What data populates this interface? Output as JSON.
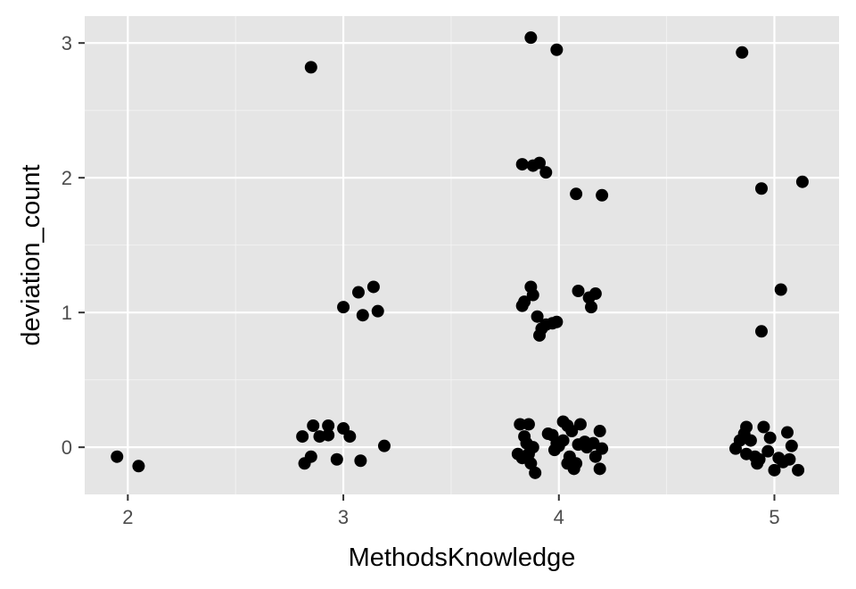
{
  "chart_data": {
    "type": "scatter",
    "xlabel": "MethodsKnowledge",
    "ylabel": "deviation_count",
    "xlim": [
      1.8,
      5.3
    ],
    "ylim": [
      -0.35,
      3.2
    ],
    "x_ticks": [
      2,
      3,
      4,
      5
    ],
    "y_ticks": [
      0,
      1,
      2,
      3
    ],
    "grid": true,
    "legend": "none",
    "colors": {
      "panel": "#e5e5e5",
      "grid_major": "#ffffff",
      "grid_minor": "#f2f2f2",
      "point": "#000000"
    },
    "points": [
      {
        "x": 1.95,
        "y": -0.07
      },
      {
        "x": 2.05,
        "y": -0.14
      },
      {
        "x": 2.85,
        "y": 2.82
      },
      {
        "x": 3.0,
        "y": 1.04
      },
      {
        "x": 3.07,
        "y": 1.15
      },
      {
        "x": 3.09,
        "y": 0.98
      },
      {
        "x": 3.14,
        "y": 1.19
      },
      {
        "x": 3.16,
        "y": 1.01
      },
      {
        "x": 2.81,
        "y": 0.08
      },
      {
        "x": 2.82,
        "y": -0.12
      },
      {
        "x": 2.85,
        "y": -0.07
      },
      {
        "x": 2.86,
        "y": 0.16
      },
      {
        "x": 2.89,
        "y": 0.08
      },
      {
        "x": 2.93,
        "y": 0.09
      },
      {
        "x": 2.93,
        "y": 0.16
      },
      {
        "x": 2.97,
        "y": -0.09
      },
      {
        "x": 3.0,
        "y": 0.14
      },
      {
        "x": 3.03,
        "y": 0.08
      },
      {
        "x": 3.08,
        "y": -0.1
      },
      {
        "x": 3.19,
        "y": 0.01
      },
      {
        "x": 3.87,
        "y": 3.04
      },
      {
        "x": 3.99,
        "y": 2.95
      },
      {
        "x": 3.83,
        "y": 2.1
      },
      {
        "x": 3.88,
        "y": 2.09
      },
      {
        "x": 3.91,
        "y": 2.11
      },
      {
        "x": 3.94,
        "y": 2.04
      },
      {
        "x": 4.08,
        "y": 1.88
      },
      {
        "x": 4.2,
        "y": 1.87
      },
      {
        "x": 3.83,
        "y": 1.05
      },
      {
        "x": 3.84,
        "y": 1.08
      },
      {
        "x": 3.87,
        "y": 1.19
      },
      {
        "x": 3.88,
        "y": 1.13
      },
      {
        "x": 3.9,
        "y": 0.97
      },
      {
        "x": 3.92,
        "y": 0.88
      },
      {
        "x": 3.94,
        "y": 0.91
      },
      {
        "x": 3.99,
        "y": 0.93
      },
      {
        "x": 3.97,
        "y": 0.92
      },
      {
        "x": 3.91,
        "y": 0.83
      },
      {
        "x": 4.09,
        "y": 1.16
      },
      {
        "x": 4.14,
        "y": 1.11
      },
      {
        "x": 4.15,
        "y": 1.04
      },
      {
        "x": 4.17,
        "y": 1.14
      },
      {
        "x": 3.81,
        "y": -0.05
      },
      {
        "x": 3.82,
        "y": 0.17
      },
      {
        "x": 3.83,
        "y": -0.08
      },
      {
        "x": 3.84,
        "y": 0.08
      },
      {
        "x": 3.85,
        "y": 0.03
      },
      {
        "x": 3.86,
        "y": 0.17
      },
      {
        "x": 3.86,
        "y": -0.05
      },
      {
        "x": 3.87,
        "y": -0.12
      },
      {
        "x": 3.89,
        "y": -0.19
      },
      {
        "x": 3.88,
        "y": 0.0
      },
      {
        "x": 3.95,
        "y": 0.1
      },
      {
        "x": 3.97,
        "y": 0.09
      },
      {
        "x": 3.98,
        "y": -0.02
      },
      {
        "x": 3.99,
        "y": 0.03
      },
      {
        "x": 4.0,
        "y": 0.01
      },
      {
        "x": 4.02,
        "y": 0.05
      },
      {
        "x": 4.02,
        "y": 0.19
      },
      {
        "x": 4.04,
        "y": 0.16
      },
      {
        "x": 4.04,
        "y": -0.12
      },
      {
        "x": 4.05,
        "y": -0.07
      },
      {
        "x": 4.06,
        "y": 0.12
      },
      {
        "x": 4.07,
        "y": -0.16
      },
      {
        "x": 4.08,
        "y": -0.12
      },
      {
        "x": 4.09,
        "y": 0.02
      },
      {
        "x": 4.1,
        "y": 0.17
      },
      {
        "x": 4.12,
        "y": 0.04
      },
      {
        "x": 4.13,
        "y": 0.0
      },
      {
        "x": 4.16,
        "y": 0.03
      },
      {
        "x": 4.17,
        "y": -0.07
      },
      {
        "x": 4.19,
        "y": 0.12
      },
      {
        "x": 4.19,
        "y": -0.16
      },
      {
        "x": 4.2,
        "y": -0.01
      },
      {
        "x": 4.85,
        "y": 2.93
      },
      {
        "x": 4.94,
        "y": 1.92
      },
      {
        "x": 5.13,
        "y": 1.97
      },
      {
        "x": 5.03,
        "y": 1.17
      },
      {
        "x": 4.94,
        "y": 0.86
      },
      {
        "x": 4.82,
        "y": -0.01
      },
      {
        "x": 4.84,
        "y": 0.05
      },
      {
        "x": 4.86,
        "y": 0.1
      },
      {
        "x": 4.87,
        "y": -0.05
      },
      {
        "x": 4.87,
        "y": 0.15
      },
      {
        "x": 4.89,
        "y": 0.05
      },
      {
        "x": 4.91,
        "y": -0.07
      },
      {
        "x": 4.92,
        "y": -0.12
      },
      {
        "x": 4.93,
        "y": -0.09
      },
      {
        "x": 4.95,
        "y": 0.15
      },
      {
        "x": 4.97,
        "y": -0.03
      },
      {
        "x": 4.98,
        "y": 0.07
      },
      {
        "x": 5.0,
        "y": -0.17
      },
      {
        "x": 5.02,
        "y": -0.08
      },
      {
        "x": 5.04,
        "y": -0.11
      },
      {
        "x": 5.06,
        "y": 0.11
      },
      {
        "x": 5.07,
        "y": -0.09
      },
      {
        "x": 5.08,
        "y": 0.01
      },
      {
        "x": 5.11,
        "y": -0.17
      }
    ]
  }
}
